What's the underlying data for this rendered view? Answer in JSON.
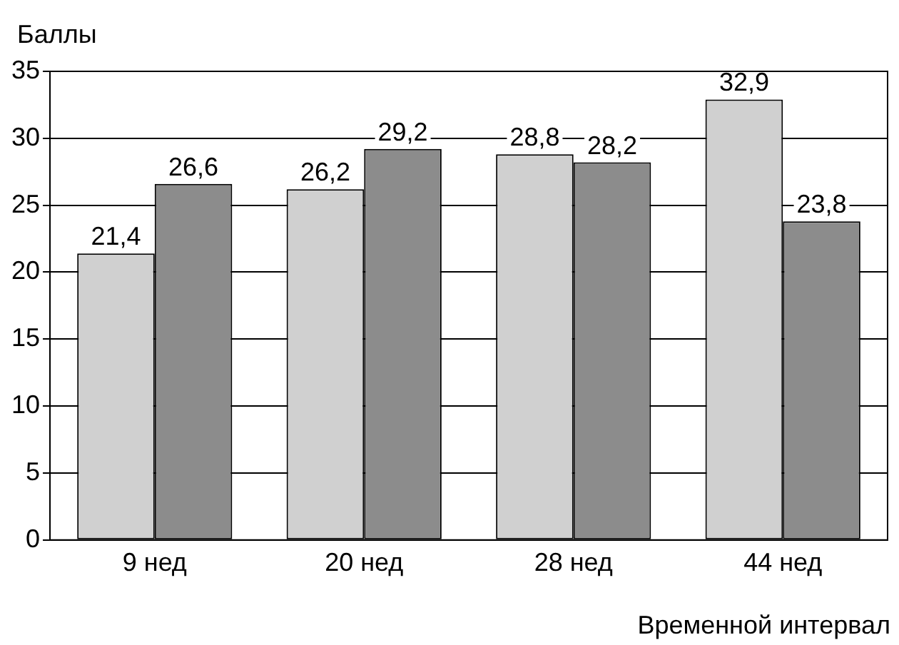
{
  "chart_data": {
    "type": "bar",
    "ylabel": "Баллы",
    "xlabel": "Временной интервал",
    "categories": [
      "9 нед",
      "20 нед",
      "28 нед",
      "44 нед"
    ],
    "series": [
      {
        "color": "#d0d0d0",
        "values": [
          21.4,
          26.2,
          28.8,
          32.9
        ],
        "value_labels": [
          "21,4",
          "26,2",
          "28,8",
          "32,9"
        ]
      },
      {
        "color": "#8c8c8c",
        "values": [
          26.6,
          29.2,
          28.2,
          23.8
        ],
        "value_labels": [
          "26,6",
          "29,2",
          "28,2",
          "23,8"
        ]
      }
    ],
    "ylim": [
      0,
      35
    ],
    "yticks": [
      0,
      5,
      10,
      15,
      20,
      25,
      30,
      35
    ],
    "grid": "y",
    "legend": false
  }
}
